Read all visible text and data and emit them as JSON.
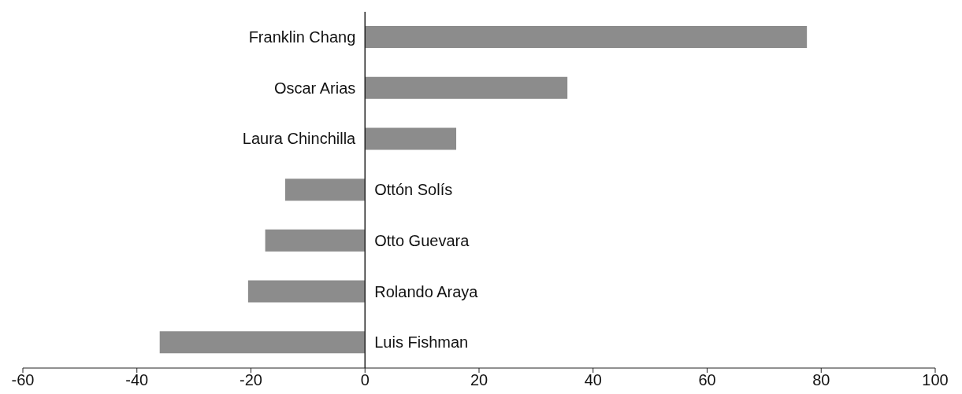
{
  "chart_data": {
    "type": "bar",
    "orientation": "horizontal",
    "categories": [
      "Franklin Chang",
      "Oscar Arias",
      "Laura Chinchilla",
      "Ottón Solís",
      "Otto Guevara",
      "Rolando Araya",
      "Luis Fishman"
    ],
    "values": [
      77.5,
      35.5,
      16,
      -14,
      -17.5,
      -20.5,
      -36
    ],
    "color": "#8c8c8c",
    "xlim": [
      -60,
      100
    ],
    "xticks": [
      -60,
      -40,
      -20,
      0,
      20,
      40,
      60,
      80,
      100
    ]
  }
}
